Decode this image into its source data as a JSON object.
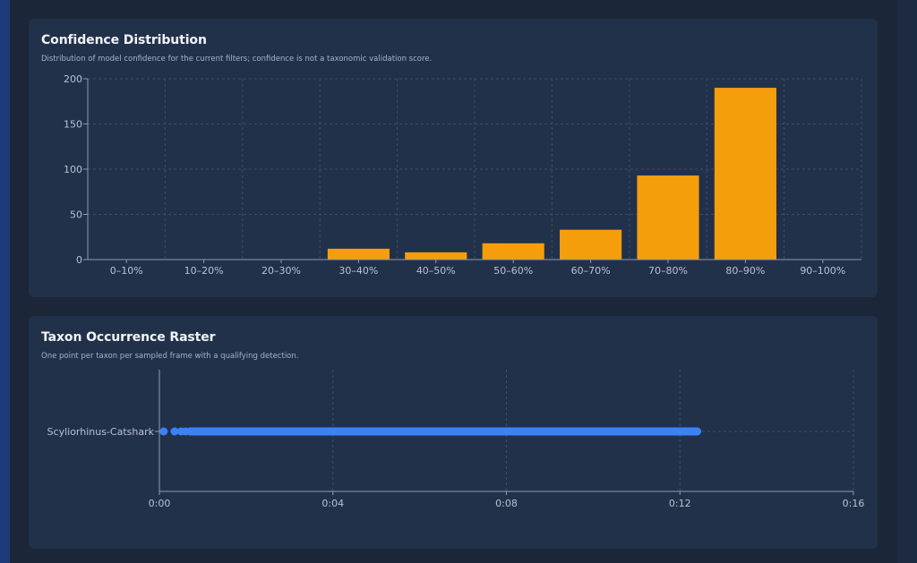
{
  "confidence_card": {
    "title": "Confidence Distribution",
    "subtitle": "Distribution of model confidence for the current filters; confidence is not a taxonomic validation score."
  },
  "raster_card": {
    "title": "Taxon Occurrence Raster",
    "subtitle": "One point per taxon per sampled frame with a qualifying detection."
  },
  "colors": {
    "bar": "#f59e0b",
    "point": "#3b82f6",
    "axis": "#8e9bb0",
    "tick_label": "#b8c2d2",
    "grid": "#3d4d66"
  },
  "chart_data": [
    {
      "type": "bar",
      "title": "Confidence Distribution",
      "categories": [
        "0–10%",
        "10–20%",
        "20–30%",
        "30–40%",
        "40–50%",
        "50–60%",
        "60–70%",
        "70–80%",
        "80–90%",
        "90–100%"
      ],
      "values": [
        0,
        0,
        0,
        12,
        8,
        18,
        33,
        93,
        190,
        0
      ],
      "yticks": [
        0,
        50,
        100,
        150,
        200
      ],
      "ylim": [
        0,
        200
      ],
      "grid": true
    },
    {
      "type": "scatter",
      "title": "Taxon Occurrence Raster",
      "categories": [
        "Scyliorhinus-Catshark"
      ],
      "xticks": [
        "0:00",
        "0:04",
        "0:08",
        "0:12",
        "0:16"
      ],
      "xlim": [
        0,
        16
      ],
      "x_unit": "minutes",
      "grid": true,
      "points": {
        "Scyliorhinus-Catshark": [
          0.1,
          0.35,
          0.5,
          0.6,
          "0.7–12.4 (continuous)"
        ]
      },
      "segments": [
        {
          "taxon": "Scyliorhinus-Catshark",
          "x": [
            0.1,
            0.35,
            0.5,
            0.6
          ],
          "continuous_from": 0.7,
          "continuous_to": 12.4
        }
      ]
    }
  ]
}
